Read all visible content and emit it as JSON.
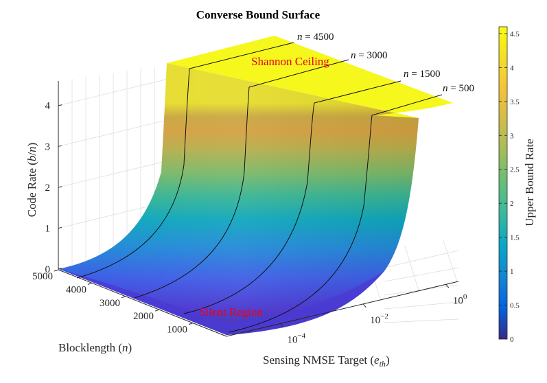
{
  "chart_data": {
    "type": "surface",
    "title": "Converse Bound Surface",
    "xlabel": "Blocklength (n)",
    "ylabel": "Sensing NMSE Target (e_th)",
    "zlabel": "Code Rate (b/n)",
    "colorbar_label": "Upper Bound Rate",
    "x_ticks": [
      "1000",
      "2000",
      "3000",
      "4000",
      "5000"
    ],
    "y_ticks": [
      {
        "base": "10",
        "exp": "−4"
      },
      {
        "base": "10",
        "exp": "−2"
      },
      {
        "base": "10",
        "exp": "0"
      }
    ],
    "z_ticks": [
      "0",
      "1",
      "2",
      "3",
      "4"
    ],
    "colorbar_ticks": [
      "0",
      "0.5",
      "1",
      "1.5",
      "2",
      "2.5",
      "3",
      "3.5",
      "4",
      "4.5"
    ],
    "zlim": [
      0,
      4.6
    ],
    "colormap": "parula",
    "annotations": [
      "Shannon Ceiling",
      "Silent Region"
    ],
    "contour_labels": [
      {
        "var": "n",
        "value": "4500"
      },
      {
        "var": "n",
        "value": "3000"
      },
      {
        "var": "n",
        "value": "1500"
      },
      {
        "var": "n",
        "value": "500"
      }
    ],
    "contour_n": [
      4500,
      3000,
      1500,
      500
    ],
    "grid": true
  },
  "colors": {
    "annotation": "#e8001c",
    "axis": "#262626",
    "grid": "#d4d4d4"
  }
}
